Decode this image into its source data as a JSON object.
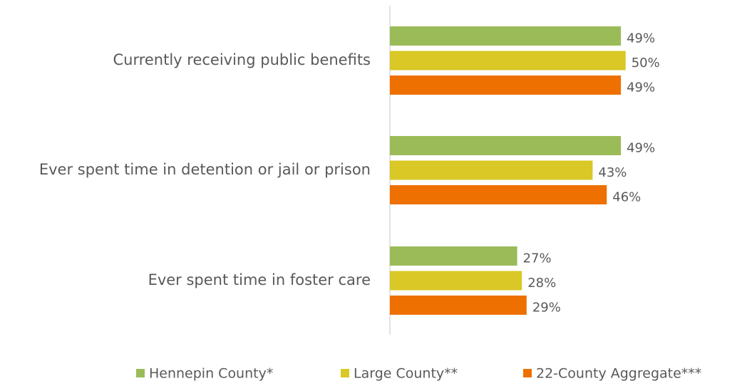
{
  "chart_data": {
    "type": "bar",
    "orientation": "horizontal",
    "categories": [
      "Currently receiving public benefits",
      "Ever spent time in detention or jail or prison",
      "Ever spent time in foster care"
    ],
    "series": [
      {
        "name": "Hennepin County*",
        "color": "#9bbb59",
        "values": [
          49,
          49,
          27
        ],
        "value_labels": [
          "49%",
          "49%",
          "27%"
        ]
      },
      {
        "name": "Large County**",
        "color": "#d9c826",
        "values": [
          50,
          43,
          28
        ],
        "value_labels": [
          "50%",
          "43%",
          "28%"
        ]
      },
      {
        "name": "22-County Aggregate***",
        "color": "#ed7000",
        "values": [
          49,
          46,
          29
        ],
        "value_labels": [
          "49%",
          "46%",
          "29%"
        ]
      }
    ],
    "xlim": [
      0,
      70
    ],
    "legend": "bottom"
  }
}
